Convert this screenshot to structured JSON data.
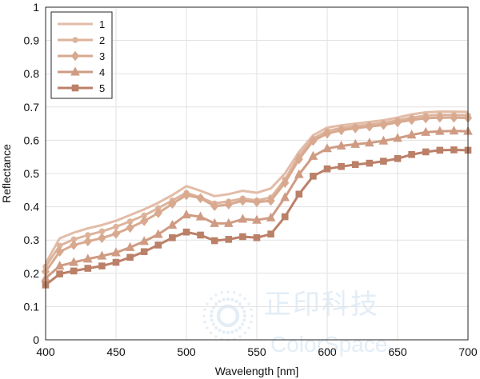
{
  "watermark": {
    "cn": "正印科技",
    "en": "ColorSpace"
  },
  "chart_data": {
    "type": "line",
    "xlabel": "Wavelength [nm]",
    "ylabel": "Reflectance",
    "xlim": [
      400,
      700
    ],
    "ylim": [
      0,
      1
    ],
    "xticks": [
      400,
      450,
      500,
      550,
      600,
      650,
      700
    ],
    "yticks": [
      0,
      0.1,
      0.2,
      0.3,
      0.4,
      0.5,
      0.6,
      0.7,
      0.8,
      0.9,
      1
    ],
    "grid": true,
    "legend_position": "top-left",
    "x": [
      400,
      410,
      420,
      430,
      440,
      450,
      460,
      470,
      480,
      490,
      500,
      510,
      520,
      530,
      540,
      550,
      560,
      570,
      580,
      590,
      600,
      610,
      620,
      630,
      640,
      650,
      660,
      670,
      680,
      690,
      700
    ],
    "series": [
      {
        "name": "1",
        "marker": "none",
        "color": "#e2bca7",
        "values": [
          0.23,
          0.305,
          0.322,
          0.335,
          0.345,
          0.358,
          0.375,
          0.392,
          0.412,
          0.435,
          0.462,
          0.448,
          0.432,
          0.438,
          0.448,
          0.442,
          0.455,
          0.5,
          0.565,
          0.615,
          0.638,
          0.645,
          0.65,
          0.655,
          0.66,
          0.668,
          0.678,
          0.684,
          0.686,
          0.686,
          0.685
        ]
      },
      {
        "name": "2",
        "marker": "circle",
        "color": "#ddb39c",
        "values": [
          0.22,
          0.283,
          0.302,
          0.315,
          0.326,
          0.34,
          0.356,
          0.374,
          0.396,
          0.419,
          0.442,
          0.428,
          0.41,
          0.416,
          0.425,
          0.419,
          0.428,
          0.482,
          0.553,
          0.605,
          0.628,
          0.637,
          0.642,
          0.647,
          0.652,
          0.66,
          0.668,
          0.674,
          0.676,
          0.676,
          0.675
        ]
      },
      {
        "name": "3",
        "marker": "diamond",
        "color": "#d8a98f",
        "values": [
          0.205,
          0.265,
          0.285,
          0.296,
          0.306,
          0.319,
          0.337,
          0.357,
          0.381,
          0.409,
          0.435,
          0.426,
          0.402,
          0.407,
          0.418,
          0.414,
          0.418,
          0.472,
          0.543,
          0.598,
          0.62,
          0.63,
          0.636,
          0.641,
          0.646,
          0.654,
          0.661,
          0.666,
          0.668,
          0.668,
          0.667
        ]
      },
      {
        "name": "4",
        "marker": "triangle",
        "color": "#cf9b83",
        "values": [
          0.185,
          0.222,
          0.233,
          0.243,
          0.252,
          0.262,
          0.278,
          0.296,
          0.317,
          0.345,
          0.376,
          0.37,
          0.35,
          0.35,
          0.363,
          0.36,
          0.367,
          0.428,
          0.497,
          0.552,
          0.575,
          0.583,
          0.588,
          0.592,
          0.598,
          0.606,
          0.616,
          0.624,
          0.627,
          0.628,
          0.627
        ]
      },
      {
        "name": "5",
        "marker": "square",
        "color": "#bb8068",
        "values": [
          0.165,
          0.198,
          0.207,
          0.215,
          0.222,
          0.233,
          0.248,
          0.265,
          0.285,
          0.307,
          0.324,
          0.315,
          0.298,
          0.302,
          0.31,
          0.307,
          0.318,
          0.37,
          0.438,
          0.492,
          0.514,
          0.521,
          0.527,
          0.531,
          0.537,
          0.545,
          0.557,
          0.565,
          0.57,
          0.571,
          0.57
        ]
      }
    ]
  }
}
